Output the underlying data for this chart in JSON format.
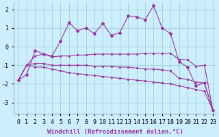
{
  "x": [
    0,
    1,
    2,
    3,
    4,
    5,
    6,
    7,
    8,
    9,
    10,
    11,
    12,
    13,
    14,
    15,
    16,
    17,
    18,
    19,
    20,
    21,
    22,
    23
  ],
  "line1": [
    -1.8,
    -1.5,
    -0.2,
    -0.4,
    -0.5,
    0.3,
    1.3,
    0.85,
    1.0,
    0.7,
    1.25,
    0.6,
    0.75,
    1.65,
    1.6,
    1.45,
    2.2,
    1.0,
    0.7,
    -0.8,
    -1.1,
    -2.1,
    -1.95,
    -3.4
  ],
  "line2": [
    -1.8,
    -1.0,
    -0.5,
    -0.4,
    -0.55,
    -0.5,
    -0.5,
    -0.45,
    -0.45,
    -0.4,
    -0.4,
    -0.4,
    -0.4,
    -0.4,
    -0.4,
    -0.35,
    -0.35,
    -0.35,
    -0.35,
    -0.7,
    -0.7,
    -1.05,
    -1.0,
    -3.4
  ],
  "line3": [
    -1.8,
    -1.0,
    -0.9,
    -0.9,
    -1.0,
    -1.0,
    -1.0,
    -1.0,
    -1.0,
    -1.05,
    -1.05,
    -1.05,
    -1.1,
    -1.1,
    -1.15,
    -1.2,
    -1.2,
    -1.25,
    -1.3,
    -1.7,
    -1.75,
    -1.9,
    -1.95,
    -3.4
  ],
  "line4": [
    -1.8,
    -1.0,
    -1.1,
    -1.1,
    -1.2,
    -1.3,
    -1.4,
    -1.45,
    -1.5,
    -1.55,
    -1.6,
    -1.65,
    -1.7,
    -1.75,
    -1.8,
    -1.85,
    -1.9,
    -1.95,
    -2.0,
    -2.1,
    -2.2,
    -2.3,
    -2.4,
    -3.4
  ],
  "color": "#993399",
  "bg_color": "#cceeff",
  "grid_color": "#99ccbb",
  "xlabel": "Windchill (Refroidissement éolien,°C)",
  "ylim": [
    -3.6,
    2.4
  ],
  "xlim": [
    -0.5,
    23.5
  ],
  "yticks": [
    -3,
    -2,
    -1,
    0,
    1,
    2
  ],
  "xticks": [
    0,
    1,
    2,
    3,
    4,
    5,
    6,
    7,
    8,
    9,
    10,
    11,
    12,
    13,
    14,
    15,
    16,
    17,
    18,
    19,
    20,
    21,
    22,
    23
  ],
  "xlabel_fontsize": 6.5,
  "tick_fontsize": 6,
  "marker": "D",
  "markersize": 2.0,
  "linewidth": 0.8
}
